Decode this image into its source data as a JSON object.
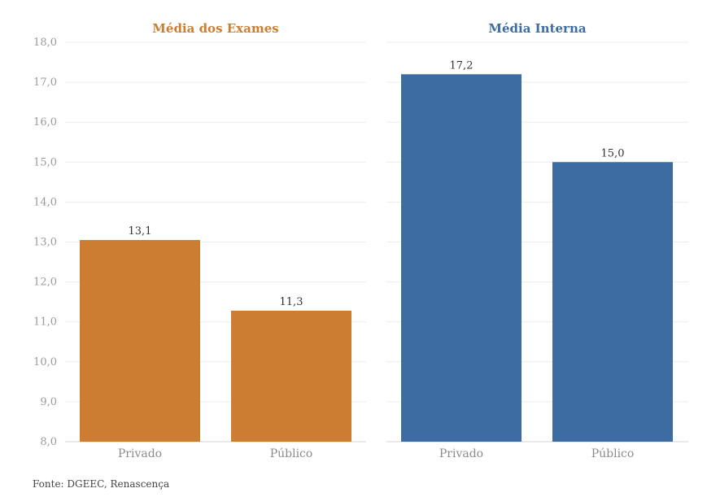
{
  "chart_data": [
    {
      "type": "bar",
      "title": "Média dos Exames",
      "color": "#cd7d31",
      "categories": [
        "Privado",
        "Público"
      ],
      "values": [
        13.05,
        11.28
      ],
      "value_labels": [
        "13,1",
        "11,3"
      ],
      "ylim": [
        8,
        18
      ],
      "yticks": [
        8,
        9,
        10,
        11,
        12,
        13,
        14,
        15,
        16,
        17,
        18
      ],
      "ytick_labels": [
        "8,0",
        "9,0",
        "10,0",
        "11,0",
        "12,0",
        "13,0",
        "14,0",
        "15,0",
        "16,0",
        "17,0",
        "18,0"
      ],
      "grid": true
    },
    {
      "type": "bar",
      "title": "Média Interna",
      "color": "#3d6ca3",
      "categories": [
        "Privado",
        "Público"
      ],
      "values": [
        17.2,
        15.0
      ],
      "value_labels": [
        "17,2",
        "15,0"
      ],
      "ylim": [
        8,
        18
      ],
      "yticks": [
        8,
        9,
        10,
        11,
        12,
        13,
        14,
        15,
        16,
        17,
        18
      ],
      "grid": true
    }
  ],
  "source": "Fonte: DGEEC, Renascença"
}
